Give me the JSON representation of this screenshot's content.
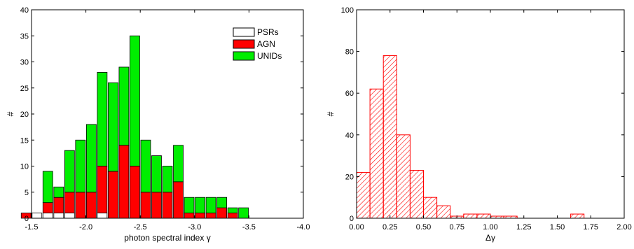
{
  "colors": {
    "psr": "#ffffff",
    "agn": "#ff0000",
    "unid": "#00ee00",
    "hatch": "#ff0000"
  },
  "chart_data": [
    {
      "type": "bar",
      "stacked": true,
      "xlabel": "photon spectral index γ",
      "ylabel": "#",
      "xlim": [
        -1.5,
        -4.0
      ],
      "ylim": [
        0,
        40
      ],
      "xticks": [
        -1.5,
        -2.0,
        -2.5,
        -3.0,
        -3.5,
        -4.0
      ],
      "xtick_labels": [
        "-1.5",
        "-2.0",
        "-2.5",
        "-3.0",
        "-3.5",
        "-4.0"
      ],
      "yticks": [
        0,
        5,
        10,
        15,
        20,
        25,
        30,
        35,
        40
      ],
      "bin_width": 0.1,
      "legend_position": "top-right",
      "x": [
        -1.45,
        -1.55,
        -1.65,
        -1.75,
        -1.85,
        -1.95,
        -2.05,
        -2.15,
        -2.25,
        -2.35,
        -2.45,
        -2.55,
        -2.65,
        -2.75,
        -2.85,
        -2.95,
        -3.05,
        -3.15,
        -3.25,
        -3.35,
        -3.45
      ],
      "series": [
        {
          "name": "PSRs",
          "values": [
            0,
            1,
            1,
            1,
            1,
            0,
            0,
            1,
            0,
            0,
            0,
            0,
            0,
            0,
            0,
            0,
            0,
            0,
            0,
            0,
            0
          ]
        },
        {
          "name": "AGN",
          "values": [
            1,
            0,
            2,
            3,
            4,
            5,
            5,
            9,
            9,
            14,
            10,
            5,
            5,
            5,
            7,
            1,
            1,
            1,
            2,
            1,
            0
          ]
        },
        {
          "name": "UNIDs",
          "values": [
            0,
            0,
            6,
            2,
            8,
            10,
            13,
            18,
            17,
            15,
            25,
            10,
            7,
            5,
            7,
            3,
            3,
            3,
            2,
            1,
            2
          ]
        }
      ]
    },
    {
      "type": "bar",
      "xlabel": "Δγ",
      "ylabel": "#",
      "xlim": [
        0,
        2.0
      ],
      "ylim": [
        0,
        100
      ],
      "xticks": [
        0,
        0.25,
        0.5,
        0.75,
        1.0,
        1.25,
        1.5,
        1.75,
        2.0
      ],
      "xtick_labels": [
        "0.00",
        "0.25",
        "0.50",
        "0.75",
        "1.00",
        "1.25",
        "1.50",
        "1.75",
        "2.00"
      ],
      "yticks": [
        0,
        20,
        40,
        60,
        80,
        100
      ],
      "bin_width": 0.1,
      "x": [
        0.05,
        0.15,
        0.25,
        0.35,
        0.45,
        0.55,
        0.65,
        0.75,
        0.85,
        0.95,
        1.05,
        1.15,
        1.25,
        1.35,
        1.45,
        1.55,
        1.65
      ],
      "values": [
        22,
        62,
        78,
        40,
        23,
        10,
        6,
        1,
        2,
        2,
        1,
        1,
        0,
        0,
        0,
        0,
        2
      ]
    }
  ]
}
